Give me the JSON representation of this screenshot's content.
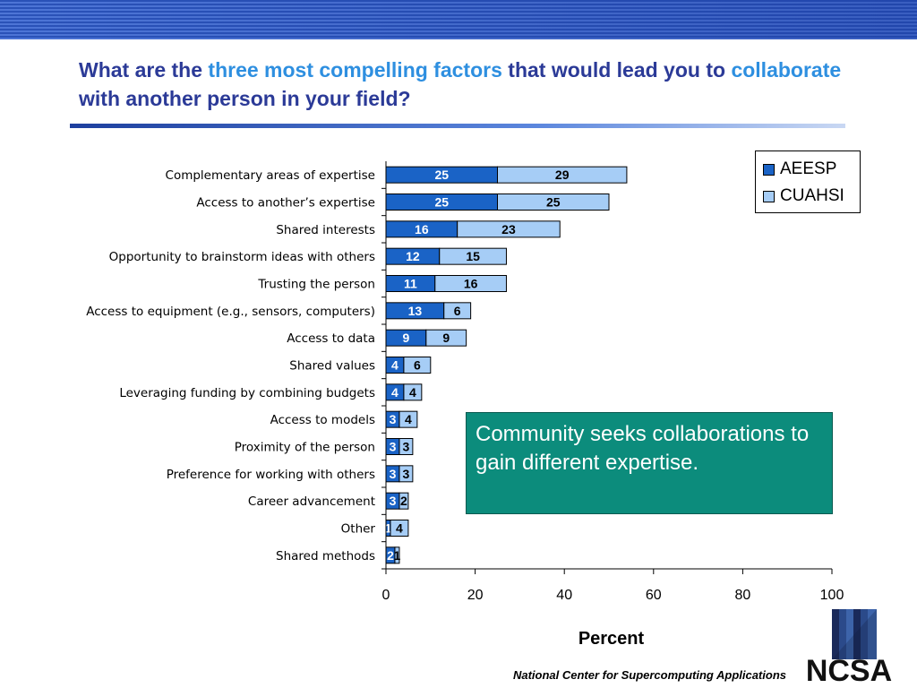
{
  "title": {
    "part1": "What are the ",
    "highlight1": "three most compelling factors",
    "part2": " that would lead you to ",
    "highlight2": "collaborate",
    "part3": " with another person in your field?"
  },
  "callout": {
    "text": "Community seeks collaborations to gain different expertise."
  },
  "footer": {
    "org": "National Center for Supercomputing Applications",
    "logo_text": "NCSA"
  },
  "colors": {
    "aeesp": "#1a63c6",
    "cuahsi": "#a6cdf6",
    "callout_bg": "#0c8c7c",
    "title": "#2b3a97",
    "highlight": "#2e8fe0"
  },
  "chart_data": {
    "type": "bar",
    "orientation": "horizontal",
    "stacked": true,
    "title": "",
    "xlabel": "Percent",
    "ylabel": "",
    "xlim": [
      0,
      100
    ],
    "xticks": [
      0,
      20,
      40,
      60,
      80,
      100
    ],
    "legend_position": "top-right",
    "grid": false,
    "categories": [
      "Complementary areas of expertise",
      "Access to another’s expertise",
      "Shared interests",
      "Opportunity to brainstorm ideas with others",
      "Trusting the person",
      "Access to equipment (e.g., sensors, computers)",
      "Access to data",
      "Shared values",
      "Leveraging funding by combining budgets",
      "Access to models",
      "Proximity of the person",
      "Preference for working with others",
      "Career advancement",
      "Other",
      "Shared methods"
    ],
    "series": [
      {
        "name": "AEESP",
        "values": [
          25,
          25,
          16,
          12,
          11,
          13,
          9,
          4,
          4,
          3,
          3,
          3,
          3,
          1,
          2
        ]
      },
      {
        "name": "CUAHSI",
        "values": [
          29,
          25,
          23,
          15,
          16,
          6,
          9,
          6,
          4,
          4,
          3,
          3,
          2,
          4,
          1
        ]
      }
    ]
  }
}
